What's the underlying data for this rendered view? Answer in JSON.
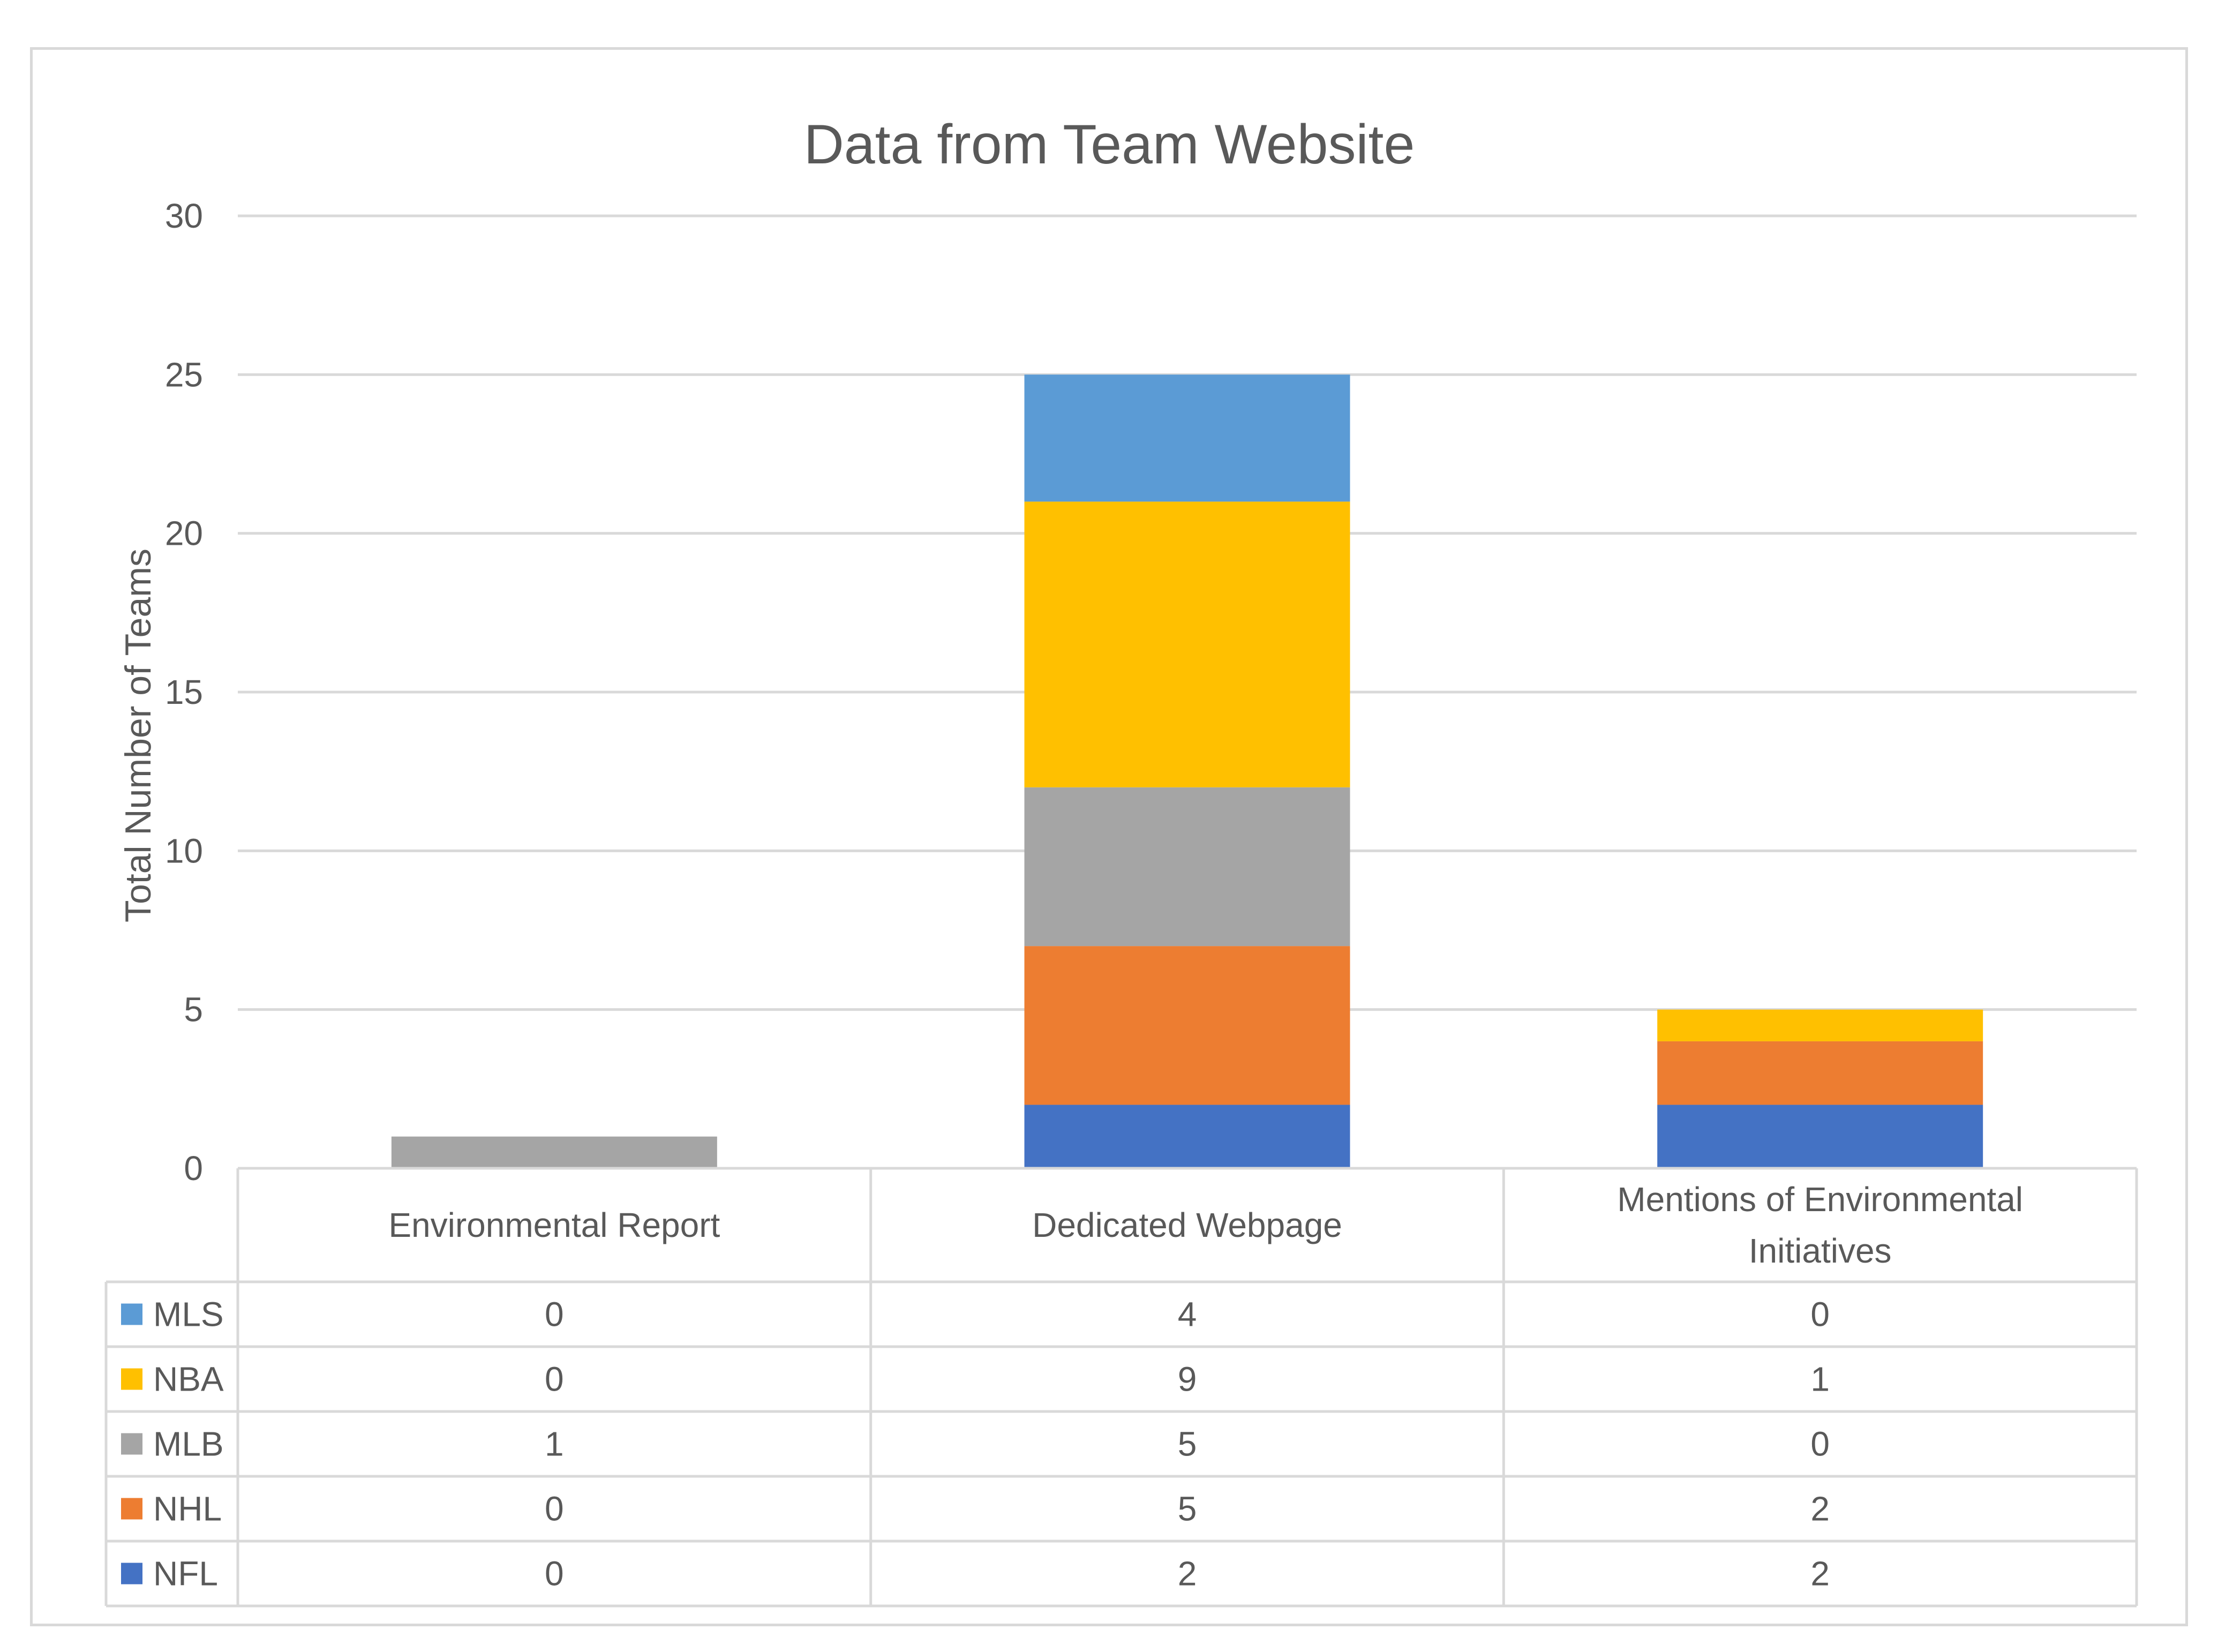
{
  "chart_data": {
    "type": "bar",
    "stacked": true,
    "title": "Data from Team Website",
    "xlabel": "",
    "ylabel": "Total Number of Teams",
    "ylim": [
      0,
      30
    ],
    "yticks": [
      0,
      5,
      10,
      15,
      20,
      25,
      30
    ],
    "grid": true,
    "legend": "data-table",
    "categories": [
      [
        "Environmental Report"
      ],
      [
        "Dedicated Webpage"
      ],
      [
        "Mentions of Environmental",
        "Initiatives"
      ]
    ],
    "series": [
      {
        "name": "NFL",
        "color": "#4472c4",
        "values": [
          0,
          2,
          2
        ]
      },
      {
        "name": "NHL",
        "color": "#ed7d31",
        "values": [
          0,
          5,
          2
        ]
      },
      {
        "name": "MLB",
        "color": "#a5a5a5",
        "values": [
          1,
          5,
          0
        ]
      },
      {
        "name": "NBA",
        "color": "#ffc000",
        "values": [
          0,
          9,
          1
        ]
      },
      {
        "name": "MLS",
        "color": "#5b9bd5",
        "values": [
          0,
          4,
          0
        ]
      }
    ],
    "table_row_order": [
      "MLS",
      "NBA",
      "MLB",
      "NHL",
      "NFL"
    ]
  }
}
